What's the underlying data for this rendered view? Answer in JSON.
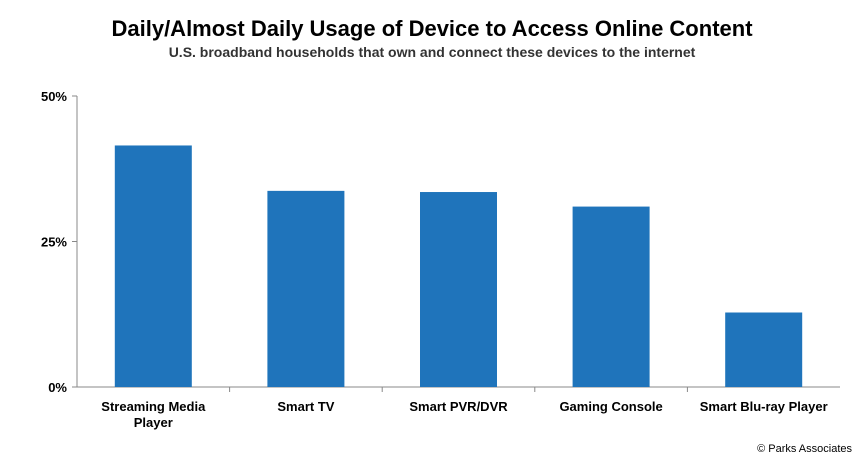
{
  "header": {
    "title": "Daily/Almost Daily Usage of Device to Access Online Content",
    "subtitle": "U.S. broadband households that own and connect these devices to the internet"
  },
  "footer": {
    "credit": "© Parks Associates"
  },
  "chart_data": {
    "type": "bar",
    "categories": [
      [
        "Streaming Media",
        "Player"
      ],
      [
        "Smart TV"
      ],
      [
        "Smart PVR/DVR"
      ],
      [
        "Gaming Console"
      ],
      [
        "Smart Blu-ray Player"
      ]
    ],
    "values": [
      41.5,
      33.7,
      33.5,
      31.0,
      12.8
    ],
    "ylim": [
      0,
      50
    ],
    "yticks": [
      0,
      25,
      50
    ],
    "ytick_labels": [
      "0%",
      "25%",
      "50%"
    ],
    "bar_color": "#1f74bb",
    "grid": false,
    "legend": "none"
  }
}
